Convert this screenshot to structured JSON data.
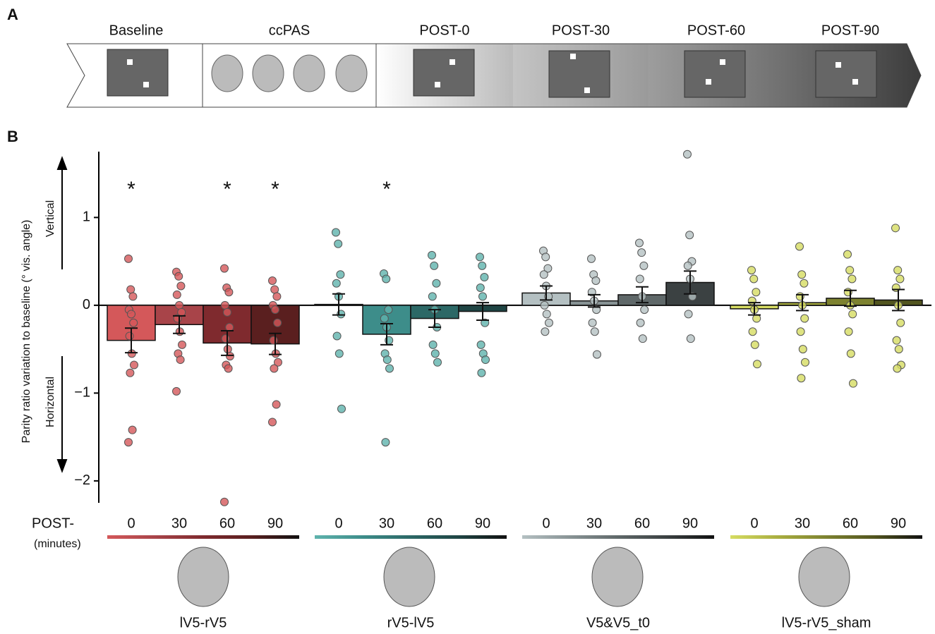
{
  "panel_a": {
    "letter": "A",
    "stages": [
      "Baseline",
      "ccPAS",
      "POST-0",
      "POST-30",
      "POST-60",
      "POST-90"
    ]
  },
  "chart_data": {
    "type": "bar",
    "letter": "B",
    "ylabel": "Parity ratio variation to baseline (° vis. angle)",
    "direction_labels": [
      "Vertical",
      "Horizontal"
    ],
    "xlabel": "POST-",
    "xlabel_unit": "(minutes)",
    "categories": [
      "0",
      "30",
      "60",
      "90"
    ],
    "ylim": [
      -2.25,
      1.75
    ],
    "yticks": [
      {
        "value": -2,
        "label": "−2"
      },
      {
        "value": -1,
        "label": "−1"
      },
      0,
      1
    ],
    "series": [
      {
        "name": "lV5-rV5",
        "colors": [
          "#d4585a",
          "#a84449",
          "#7f2a2e",
          "#5a1f1f"
        ],
        "values": [
          -0.4,
          -0.22,
          -0.43,
          -0.44
        ],
        "errors": [
          0.14,
          0.1,
          0.14,
          0.12
        ],
        "significance": [
          "*",
          null,
          "*",
          "*"
        ],
        "dots": [
          [
            0.53,
            0.18,
            0.1,
            -0.05,
            -0.1,
            -0.2,
            -0.35,
            -0.55,
            -0.68,
            -0.77,
            -1.42,
            -1.56
          ],
          [
            0.38,
            0.33,
            0.22,
            0.12,
            0.0,
            -0.08,
            -0.15,
            -0.3,
            -0.45,
            -0.55,
            -0.62,
            -0.98
          ],
          [
            0.42,
            0.2,
            0.15,
            0.0,
            -0.08,
            -0.25,
            -0.38,
            -0.5,
            -0.58,
            -0.68,
            -0.72,
            -2.24
          ],
          [
            0.28,
            0.18,
            0.1,
            0.0,
            -0.05,
            -0.2,
            -0.4,
            -0.55,
            -0.65,
            -0.72,
            -1.13,
            -1.33
          ]
        ]
      },
      {
        "name": "rV5-lV5",
        "colors": [
          "#5fb3ad",
          "#3d8d8a",
          "#2c6866",
          "#1f4544"
        ],
        "values": [
          0.01,
          -0.33,
          -0.15,
          -0.07
        ],
        "errors": [
          0.12,
          0.12,
          0.1,
          0.1
        ],
        "significance": [
          null,
          "*",
          null,
          null
        ],
        "dots": [
          [
            0.83,
            0.7,
            0.35,
            0.25,
            0.1,
            -0.1,
            -0.35,
            -0.55,
            -1.18
          ],
          [
            0.36,
            0.3,
            -0.05,
            -0.15,
            -0.25,
            -0.4,
            -0.55,
            -0.62,
            -0.72,
            -1.56
          ],
          [
            0.57,
            0.45,
            0.25,
            0.1,
            -0.05,
            -0.25,
            -0.45,
            -0.55,
            -0.65
          ],
          [
            0.55,
            0.45,
            0.32,
            0.2,
            0.1,
            -0.2,
            -0.45,
            -0.55,
            -0.62,
            -0.77
          ]
        ]
      },
      {
        "name": "V5&V5_t0",
        "colors": [
          "#b4c0c2",
          "#889395",
          "#5f6869",
          "#3b4142"
        ],
        "values": [
          0.14,
          0.05,
          0.12,
          0.26
        ],
        "errors": [
          0.08,
          0.07,
          0.09,
          0.13
        ],
        "significance": [
          null,
          null,
          null,
          null
        ],
        "dots": [
          [
            0.62,
            0.55,
            0.42,
            0.35,
            0.22,
            0.1,
            0.0,
            -0.1,
            -0.2,
            -0.3
          ],
          [
            0.53,
            0.35,
            0.28,
            0.15,
            0.05,
            -0.05,
            -0.2,
            -0.3,
            -0.56
          ],
          [
            0.71,
            0.6,
            0.45,
            0.3,
            0.1,
            -0.05,
            -0.2,
            -0.38
          ],
          [
            1.72,
            0.8,
            0.5,
            0.45,
            0.3,
            0.1,
            -0.1,
            -0.38
          ]
        ]
      },
      {
        "name": "lV5-rV5_sham",
        "colors": [
          "#d6dc62",
          "#a9ae40",
          "#7d8230",
          "#52551f"
        ],
        "values": [
          -0.04,
          0.03,
          0.08,
          0.06
        ],
        "errors": [
          0.07,
          0.09,
          0.09,
          0.12
        ],
        "significance": [
          null,
          null,
          null,
          null
        ],
        "dots": [
          [
            0.4,
            0.3,
            0.15,
            0.05,
            -0.05,
            -0.15,
            -0.3,
            -0.45,
            -0.67
          ],
          [
            0.67,
            0.35,
            0.25,
            0.1,
            0.0,
            -0.15,
            -0.3,
            -0.5,
            -0.65,
            -0.83
          ],
          [
            0.58,
            0.4,
            0.3,
            0.15,
            0.0,
            -0.1,
            -0.3,
            -0.55,
            -0.89
          ],
          [
            0.88,
            0.4,
            0.3,
            0.2,
            0.0,
            -0.2,
            -0.4,
            -0.5,
            -0.68,
            -0.72
          ]
        ]
      }
    ]
  }
}
